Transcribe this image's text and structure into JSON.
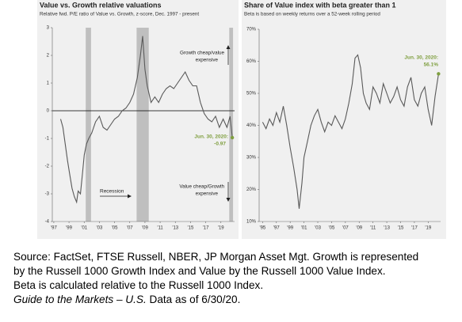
{
  "chart_data": [
    {
      "type": "line",
      "title": "Value vs. Growth relative valuations",
      "subtitle": "Relative fwd. P/E ratio of Value vs. Growth, z-score, Dec. 1997 - present",
      "x": [
        1997.9,
        1998.2,
        1998.5,
        1998.8,
        1999.1,
        1999.4,
        1999.7,
        2000.0,
        2000.2,
        2000.5,
        2000.8,
        2001.0,
        2001.3,
        2001.6,
        2002.0,
        2002.5,
        2003.0,
        2003.5,
        2004.0,
        2004.5,
        2005.0,
        2005.5,
        2006.0,
        2006.5,
        2007.0,
        2007.5,
        2008.0,
        2008.4,
        2008.7,
        2009.0,
        2009.3,
        2009.8,
        2010.3,
        2010.8,
        2011.3,
        2011.8,
        2012.3,
        2012.8,
        2013.3,
        2013.8,
        2014.3,
        2014.8,
        2015.3,
        2015.8,
        2016.3,
        2016.8,
        2017.3,
        2017.8,
        2018.3,
        2018.8,
        2019.3,
        2019.8,
        2020.2,
        2020.5
      ],
      "values": [
        -0.3,
        -0.6,
        -1.2,
        -1.8,
        -2.3,
        -2.8,
        -3.1,
        -3.3,
        -2.9,
        -3.0,
        -2.2,
        -1.6,
        -1.2,
        -1.0,
        -0.8,
        -0.4,
        -0.2,
        -0.6,
        -0.7,
        -0.5,
        -0.3,
        -0.2,
        0.0,
        0.1,
        0.3,
        0.6,
        1.2,
        2.0,
        2.7,
        1.5,
        0.9,
        0.3,
        0.5,
        0.3,
        0.6,
        0.8,
        0.9,
        0.8,
        1.0,
        1.2,
        1.4,
        1.1,
        0.9,
        0.9,
        0.3,
        -0.1,
        -0.3,
        -0.4,
        -0.2,
        -0.6,
        -0.3,
        -0.6,
        -0.2,
        -0.97
      ],
      "color": "#595959",
      "end_color": "#7f9f3f",
      "xlim": [
        1996.8,
        2020.8
      ],
      "xticks": [
        {
          "value": 1997,
          "label": "'97"
        },
        {
          "value": 1999,
          "label": "'99"
        },
        {
          "value": 2001,
          "label": "'01"
        },
        {
          "value": 2003,
          "label": "'03"
        },
        {
          "value": 2005,
          "label": "'05"
        },
        {
          "value": 2007,
          "label": "'07"
        },
        {
          "value": 2009,
          "label": "'09"
        },
        {
          "value": 2011,
          "label": "'11"
        },
        {
          "value": 2013,
          "label": "'13"
        },
        {
          "value": 2015,
          "label": "'15"
        },
        {
          "value": 2017,
          "label": "'17"
        },
        {
          "value": 2019,
          "label": "'19"
        }
      ],
      "ylim": [
        -4,
        3
      ],
      "yticks": [
        -4,
        -3,
        -2,
        -1,
        0,
        1,
        2,
        3
      ],
      "zero_line": true,
      "recession_bands": [
        [
          2001.2,
          2001.9
        ],
        [
          2007.9,
          2009.5
        ],
        [
          2020.1,
          2020.6
        ]
      ],
      "band_color": "#bfbfbf",
      "end_date_label": "Jun. 30, 2020:",
      "annotations": {
        "recession": "Recession",
        "growth_cheap": [
          "Growth cheap/value",
          "expensive"
        ],
        "value_cheap": [
          "Value cheap/Growth",
          "expensive"
        ]
      }
    },
    {
      "type": "line",
      "title": "Share of Value index with beta greater than 1",
      "subtitle": "Beta is based on weekly returns over a 52-week rolling period",
      "x": [
        1995,
        1995.5,
        1996,
        1996.5,
        1997,
        1997.5,
        1998,
        1998.5,
        1999,
        1999.5,
        2000,
        2000.3,
        2000.7,
        2001,
        2001.5,
        2002,
        2002.5,
        2003,
        2003.5,
        2004,
        2004.5,
        2005,
        2005.5,
        2006,
        2006.5,
        2007,
        2007.5,
        2008,
        2008.4,
        2008.8,
        2009.2,
        2009.6,
        2010,
        2010.5,
        2011,
        2011.5,
        2012,
        2012.5,
        2013,
        2013.5,
        2014,
        2014.5,
        2015,
        2015.5,
        2016,
        2016.5,
        2017,
        2017.5,
        2018,
        2018.5,
        2019,
        2019.5,
        2020,
        2020.5
      ],
      "values": [
        41,
        39,
        42,
        40,
        44,
        41,
        46,
        40,
        33,
        27,
        20,
        14,
        22,
        30,
        35,
        40,
        43,
        45,
        41,
        38,
        41,
        40,
        43,
        41,
        39,
        42,
        47,
        53,
        61,
        62,
        58,
        50,
        47,
        45,
        52,
        50,
        47,
        53,
        50,
        47,
        49,
        52,
        48,
        46,
        52,
        55,
        48,
        46,
        50,
        52,
        45,
        40,
        49,
        56.1
      ],
      "value_labels": [
        null,
        null,
        null,
        null,
        null,
        null,
        null,
        null,
        null,
        null,
        null,
        null,
        null,
        null,
        null,
        null,
        null,
        null,
        null,
        null,
        null,
        null,
        null,
        null,
        null,
        null,
        null,
        null,
        null,
        null,
        null,
        null,
        null,
        null,
        null,
        null,
        null,
        null,
        null,
        null,
        null,
        null,
        null,
        null,
        null,
        null,
        null,
        null,
        null,
        null,
        null,
        null,
        null,
        "56.1%"
      ],
      "color": "#595959",
      "end_color": "#7f9f3f",
      "xlim": [
        1994.5,
        2020.8
      ],
      "xticks": [
        {
          "value": 1995,
          "label": "'95"
        },
        {
          "value": 1997,
          "label": "'97"
        },
        {
          "value": 1999,
          "label": "'99"
        },
        {
          "value": 2001,
          "label": "'01"
        },
        {
          "value": 2003,
          "label": "'03"
        },
        {
          "value": 2005,
          "label": "'05"
        },
        {
          "value": 2007,
          "label": "'07"
        },
        {
          "value": 2009,
          "label": "'09"
        },
        {
          "value": 2011,
          "label": "'11"
        },
        {
          "value": 2013,
          "label": "'13"
        },
        {
          "value": 2015,
          "label": "'15"
        },
        {
          "value": 2017,
          "label": "'17"
        },
        {
          "value": 2019,
          "label": "'19"
        }
      ],
      "ylim": [
        10,
        70
      ],
      "yticks": [
        {
          "value": 10,
          "label": "10%"
        },
        {
          "value": 20,
          "label": "20%"
        },
        {
          "value": 30,
          "label": "30%"
        },
        {
          "value": 40,
          "label": "40%"
        },
        {
          "value": 50,
          "label": "50%"
        },
        {
          "value": 60,
          "label": "60%"
        },
        {
          "value": 70,
          "label": "70%"
        }
      ],
      "end_date_label": "Jun. 30, 2020:"
    }
  ],
  "caption": {
    "lines": [
      "Source: FactSet, FTSE Russell, NBER, JP Morgan Asset Mgt.  Growth is represented",
      "by the Russell 1000 Growth Index and Value by the Russell 1000 Value Index.",
      "Beta is calculated relative to the Russell 1000 Index."
    ],
    "guide": "Guide to the Markets – U.S.",
    "as_of": "Data as of 6/30/20."
  }
}
